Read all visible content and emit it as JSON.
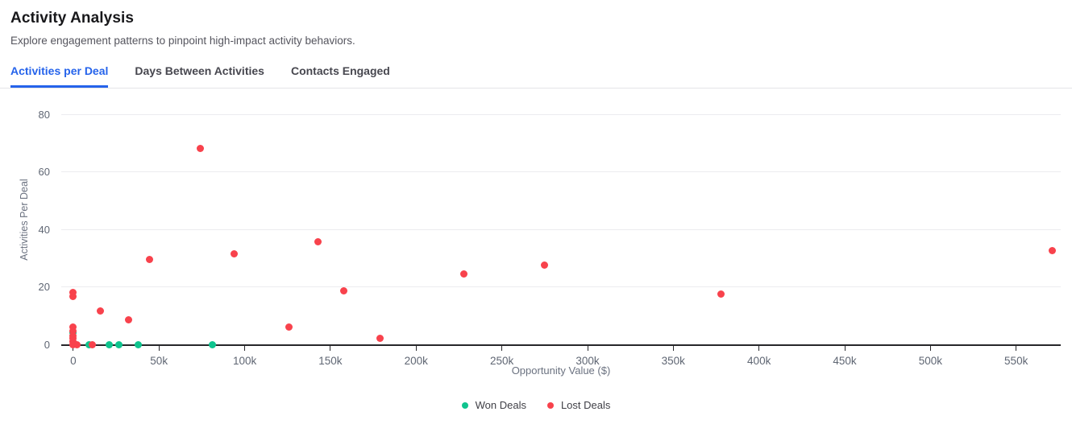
{
  "header": {
    "title": "Activity Analysis",
    "subtitle": "Explore engagement patterns to pinpoint high-impact activity behaviors."
  },
  "tabs": [
    {
      "label": "Activities per Deal",
      "active": true
    },
    {
      "label": "Days Between Activities",
      "active": false
    },
    {
      "label": "Contacts Engaged",
      "active": false
    }
  ],
  "colors": {
    "accent_blue": "#2563eb",
    "won_green": "#0fc48e",
    "lost_red": "#f8424c",
    "gridline": "#ececef",
    "axis": "#27272a",
    "axis_text": "#5f6673"
  },
  "chart_data": {
    "type": "scatter",
    "title": "",
    "xlabel": "Opportunity Value ($)",
    "ylabel": "Activities Per Deal",
    "xlim": [
      -7000,
      576000
    ],
    "ylim": [
      0,
      86
    ],
    "grid": "horizontal",
    "legend_position": "bottom",
    "x_ticks": [
      {
        "value": 0,
        "label": "0"
      },
      {
        "value": 50000,
        "label": "50k"
      },
      {
        "value": 100000,
        "label": "100k"
      },
      {
        "value": 150000,
        "label": "150k"
      },
      {
        "value": 200000,
        "label": "200k"
      },
      {
        "value": 250000,
        "label": "250k"
      },
      {
        "value": 300000,
        "label": "300k"
      },
      {
        "value": 350000,
        "label": "350k"
      },
      {
        "value": 400000,
        "label": "400k"
      },
      {
        "value": 450000,
        "label": "450k"
      },
      {
        "value": 500000,
        "label": "500k"
      },
      {
        "value": 550000,
        "label": "550k"
      }
    ],
    "y_ticks": [
      {
        "value": 0,
        "label": "0"
      },
      {
        "value": 20,
        "label": "20"
      },
      {
        "value": 40,
        "label": "40"
      },
      {
        "value": 60,
        "label": "60"
      },
      {
        "value": 80,
        "label": "80"
      }
    ],
    "series": [
      {
        "name": "Won Deals",
        "color": "#0fc48e",
        "points": [
          [
            0,
            4
          ],
          [
            9000,
            0
          ],
          [
            21000,
            0
          ],
          [
            26500,
            0
          ],
          [
            38000,
            0
          ],
          [
            81000,
            0
          ]
        ]
      },
      {
        "name": "Lost Deals",
        "color": "#f8424c",
        "points": [
          [
            0,
            18
          ],
          [
            0,
            16.5
          ],
          [
            0,
            6
          ],
          [
            0,
            4.5
          ],
          [
            0,
            3
          ],
          [
            0,
            2
          ],
          [
            0,
            1
          ],
          [
            0,
            0
          ],
          [
            2000,
            0
          ],
          [
            11000,
            0
          ],
          [
            16000,
            11.5
          ],
          [
            32000,
            8.5
          ],
          [
            44500,
            29.5
          ],
          [
            74000,
            68
          ],
          [
            94000,
            31.5
          ],
          [
            126000,
            6
          ],
          [
            142500,
            35.5
          ],
          [
            158000,
            18.5
          ],
          [
            179000,
            2
          ],
          [
            228000,
            24.5
          ],
          [
            275000,
            27.5
          ],
          [
            378000,
            17.5
          ],
          [
            571000,
            32.5
          ]
        ]
      }
    ]
  }
}
